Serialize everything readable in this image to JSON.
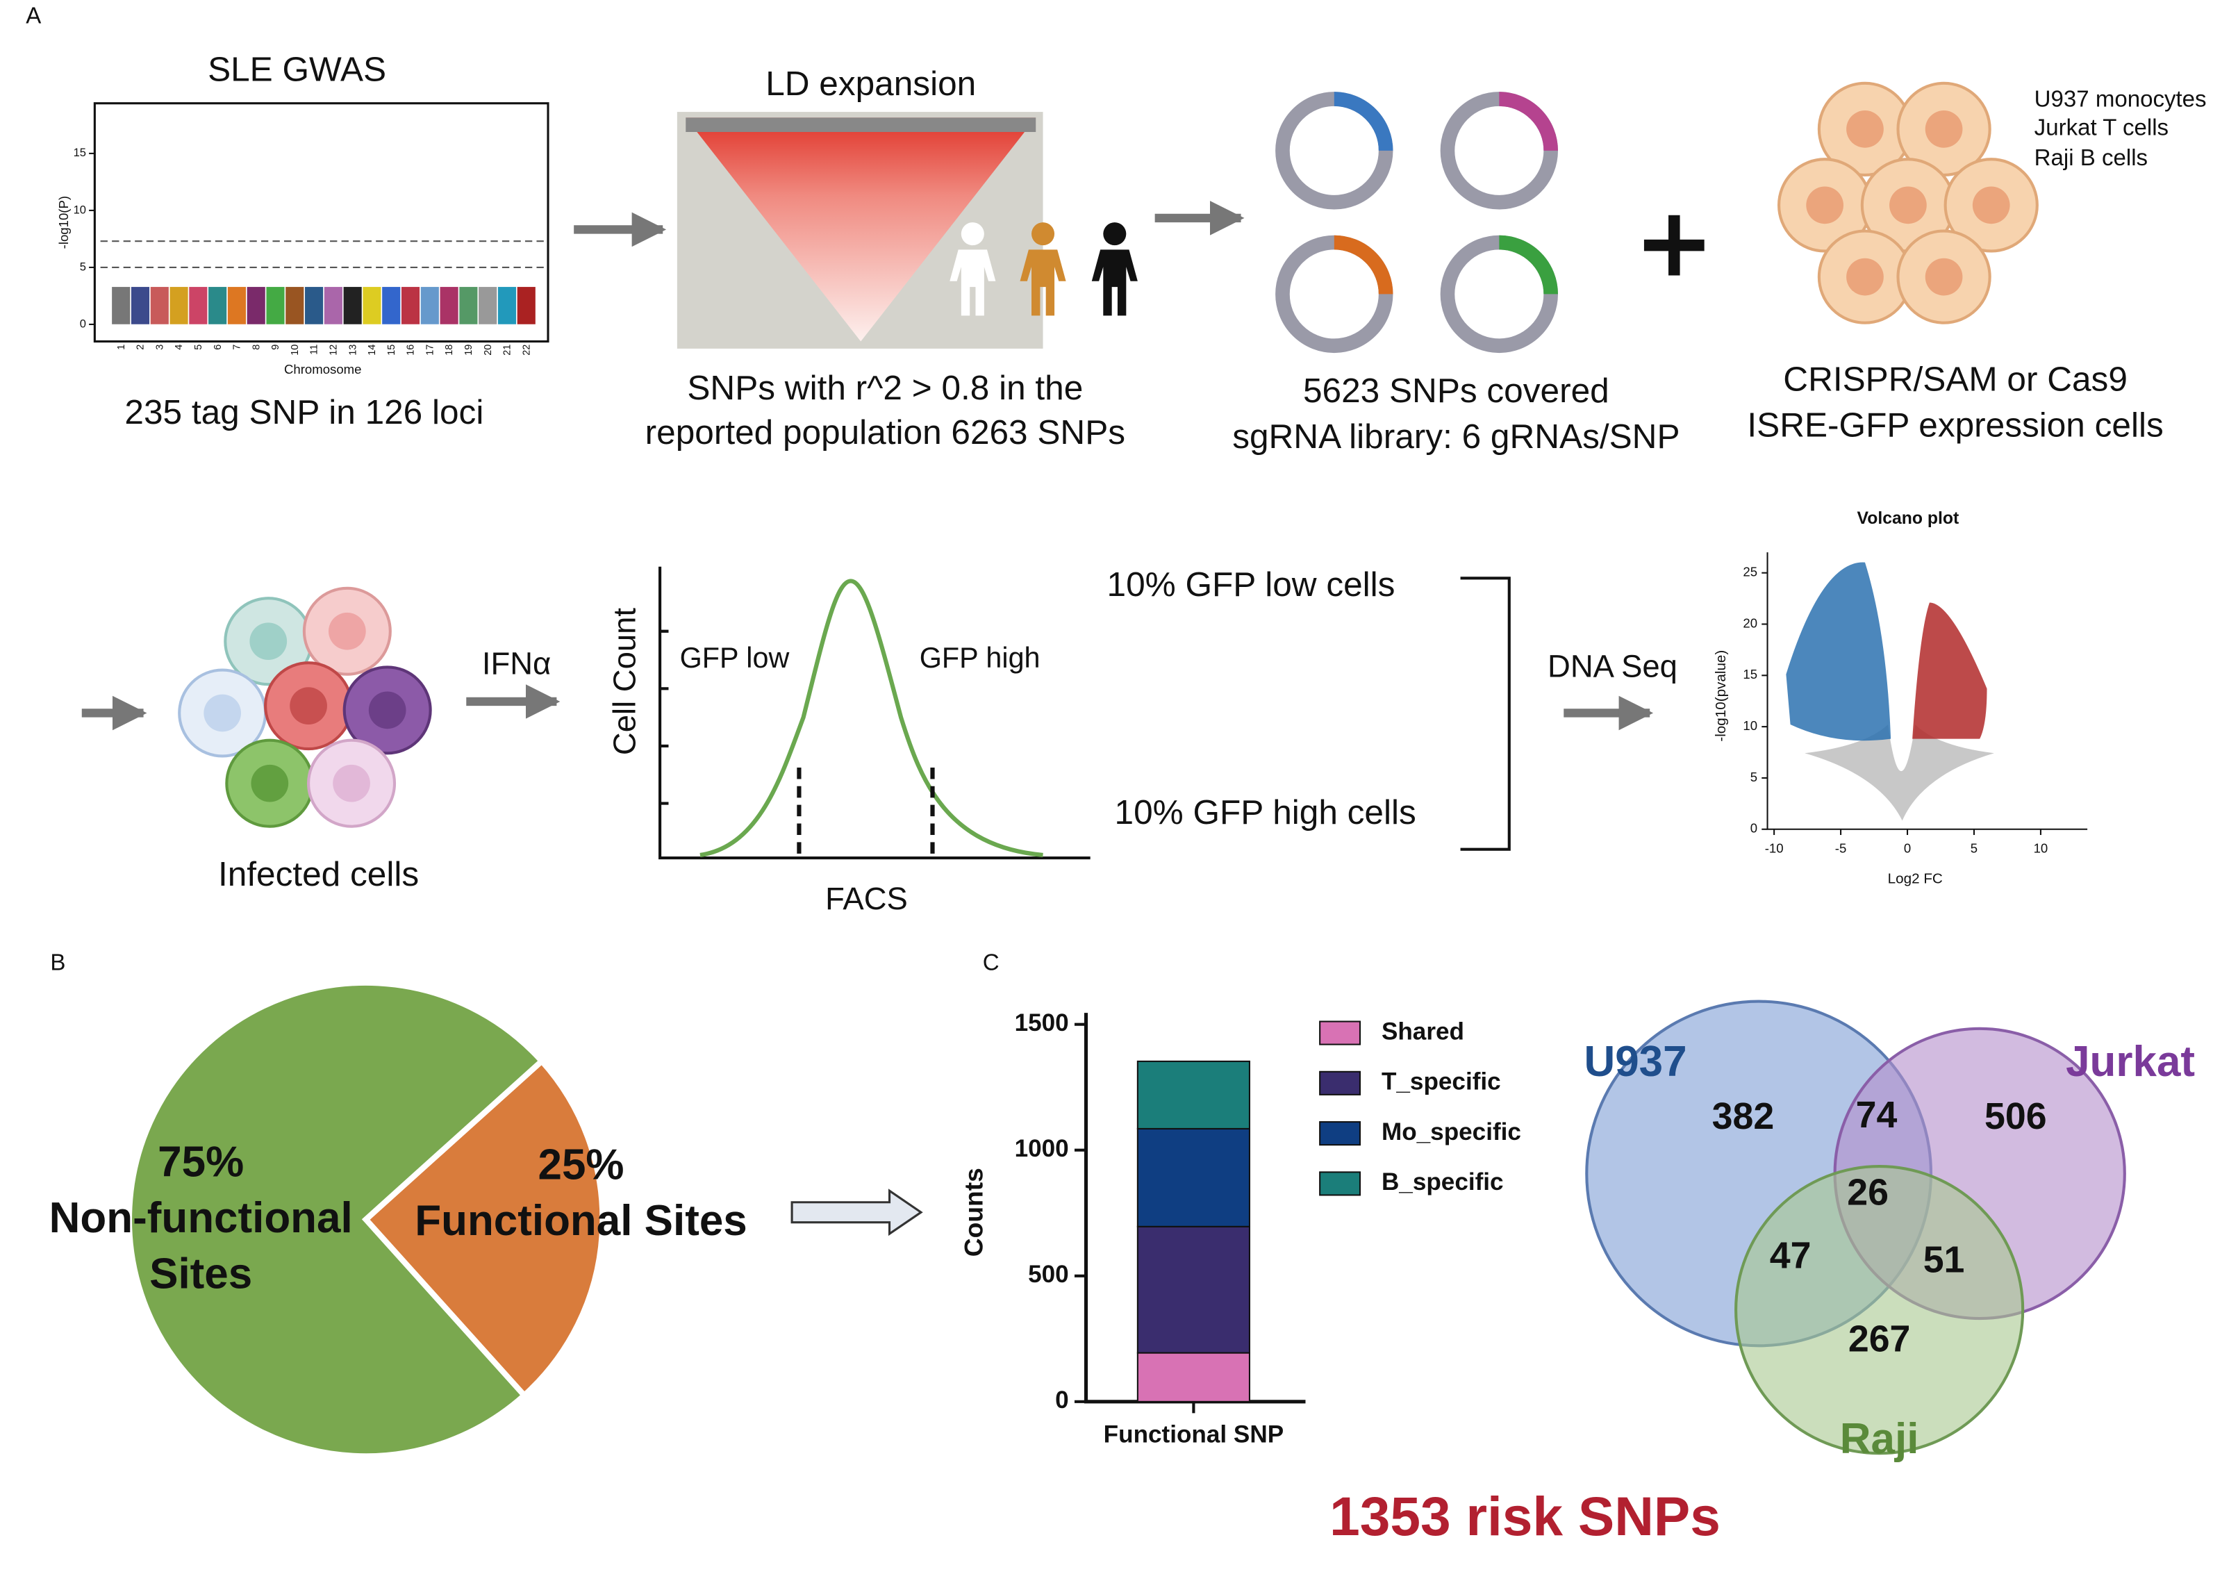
{
  "figure": {
    "panel_labels": [
      "A",
      "B",
      "C"
    ],
    "gwas": {
      "title": "SLE GWAS",
      "y_label": "-log10(P)",
      "x_label": "Chromosome",
      "ylim": [
        -1.5,
        19.4
      ],
      "yticks": [
        0,
        5,
        10,
        15
      ],
      "threshold_lines": [
        5,
        7.3
      ],
      "chromosomes": [
        "1",
        "2",
        "3",
        "4",
        "5",
        "6",
        "7",
        "8",
        "9",
        "10",
        "11",
        "12",
        "13",
        "14",
        "15",
        "16",
        "17",
        "18",
        "19",
        "20",
        "21",
        "22"
      ],
      "caption": "235 tag SNP in 126 loci"
    },
    "ld": {
      "title": "LD expansion",
      "caption": [
        "SNPs with r^2 > 0.8 in the",
        "reported population 6263 SNPs"
      ]
    },
    "library": {
      "caption": [
        "5623 SNPs covered",
        "sgRNA library: 6 gRNAs/SNP"
      ]
    },
    "cells": {
      "names": [
        "U937 monocytes",
        "Jurkat T cells",
        "Raji B cells"
      ],
      "caption": [
        "CRISPR/SAM or Cas9",
        "ISRE-GFP expression cells"
      ]
    },
    "infected": "Infected cells",
    "stimulus": "IFNα",
    "facs": {
      "y_label": "Cell Count",
      "x_label": "FACS",
      "low": "GFP low",
      "high": "GFP high"
    },
    "sorts": [
      "10% GFP low cells",
      "10% GFP high cells"
    ],
    "sequencing": "DNA Seq",
    "volcano": {
      "title": "Volcano plot",
      "x_label": "Log2 FC",
      "y_label": "-log10(pvalue)",
      "xlim": [
        -10.5,
        13.5
      ],
      "xticks": [
        -10,
        -5,
        0,
        5,
        10
      ],
      "ylim": [
        0,
        27
      ],
      "yticks": [
        0,
        5,
        10,
        15,
        20,
        25
      ]
    },
    "venn": {
      "sets": [
        "U937",
        "Jurkat",
        "Raji"
      ],
      "regions": [
        382,
        74,
        506,
        26,
        47,
        51,
        267
      ],
      "total": "1353 risk SNPs"
    }
  },
  "chart_data": [
    {
      "type": "pie",
      "categories": [
        [
          "Non-functional",
          "Sites"
        ],
        [
          "Functional Sites"
        ]
      ],
      "values": [
        75,
        25
      ],
      "value_labels": [
        "75%",
        "25%"
      ],
      "colors": [
        "#7aa84f",
        "#d97c3c"
      ]
    },
    {
      "type": "stacked_bar",
      "y_label": "Counts",
      "categories": [
        "Functional SNP"
      ],
      "ylim": [
        0,
        1500
      ],
      "yticks": [
        0,
        500,
        1000,
        1500
      ],
      "series": [
        {
          "name": "Shared",
          "color": "#d872b4",
          "values": [
            194
          ]
        },
        {
          "name": "T_specific",
          "color": "#3a2d6e",
          "values": [
            502
          ]
        },
        {
          "name": "Mo_specific",
          "color": "#0f3e82",
          "values": [
            389
          ]
        },
        {
          "name": "B_specific",
          "color": "#1b7e7a",
          "values": [
            268
          ]
        }
      ]
    }
  ]
}
